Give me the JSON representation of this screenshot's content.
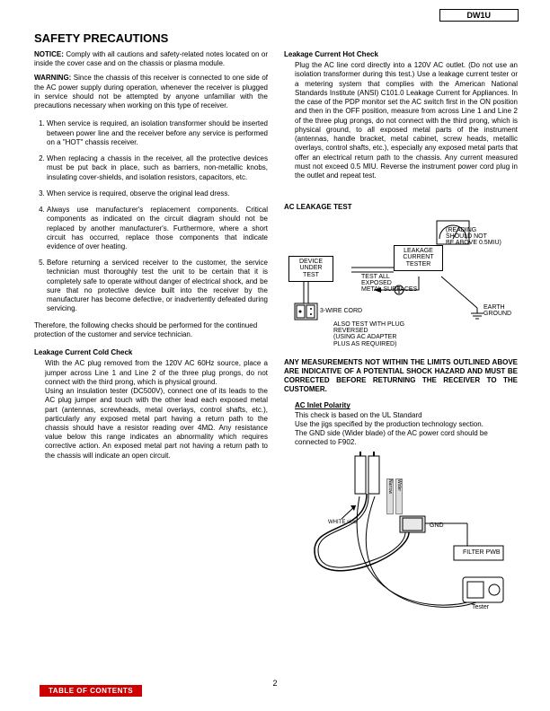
{
  "model": "DW1U",
  "title": "SAFETY PRECAUTIONS",
  "notice_label": "NOTICE:",
  "notice_text": "  Comply with all cautions and safety-related notes located on or inside the cover case and on the chassis or plasma module.",
  "warn_label": "WARNING:",
  "warn_text": " Since the chassis of this receiver is connected to one side of the AC power supply during operation, whenever the receiver is plugged in service should not be attempted by anyone unfamiliar with the precautions necessary when working on this type of receiver.",
  "items": [
    "When service is required, an isolation transformer should be inserted between power line and the receiver before any service is performed on a \"HOT\" chassis receiver.",
    "When replacing a chassis in the receiver, all the protective devices must be put back in place, such as barriers, non-metallic knobs, insulating cover-shields, and isolation resistors, capacitors, etc.",
    "When service is required, observe the original lead dress.",
    "Always use manufacturer's replacement components.  Critical components as indicated on the circuit diagram should not be replaced by another manufacturer's.  Furthermore, where a short circuit has occurred, replace those components that indicate evidence of over heating.",
    "Before returning a serviced receiver to the customer, the service technician must thoroughly test the unit to be certain that it is completely safe to operate without danger of electrical shock, and be sure that no protective device built into the receiver by the manufacturer has become defective, or inadvertently defeated during servicing."
  ],
  "therefore": "Therefore, the following checks should be performed for the continued protection of the customer and service technician.",
  "cold_head": "Leakage Current Cold Check",
  "cold_p1": "With the AC plug removed from the 120V AC 60Hz source, place a jumper across Line 1 and Line 2 of the three plug prongs, do not connect with the third prong, which is physical ground.",
  "cold_p2": "Using an insulation tester (DC500V), connect one of its leads to the AC plug jumper and touch with the other lead each exposed metal part (antennas, screwheads, metal overlays, control shafts, etc.), particularly any exposed metal part having a return path to the chassis should have a resistor reading over 4MΩ.  Any resistance value below this range indicates an abnormality which requires corrective action.  An exposed metal part not having a return path to the chassis will indicate an open circuit.",
  "hot_head": "Leakage Current Hot Check",
  "hot_body": "Plug the AC line cord directly into a 120V AC outlet.  (Do not use an isolation transformer during this test.)  Use a leakage current tester or a metering system that complies with the American National Standards Institute (ANSI) C101.0 Leakage Current for Appliances.  In the case of the PDP monitor set the AC switch first in the ON position and then in the OFF position, measure from across Line 1 and Line 2 of the three plug prongs, do not connect with the third prong, which is physical ground, to all exposed metal parts of the instrument (antennas, handle bracket, metal cabinet, screw heads, metallic overlays, control shafts, etc.), especially any exposed metal parts that offer an electrical return path to the chassis.  Any current measured must not exceed 0.5 MIU.  Reverse the instrument power cord plug in the outlet and repeat test.",
  "ac_test_head": "AC LEAKAGE TEST",
  "diag1": {
    "device": "DEVICE\nUNDER\nTEST",
    "tester": "LEAKAGE\nCURRENT\nTESTER",
    "reading": "(READING\nSHOULD NOT\nBE ABOVE 0.5MIU)",
    "testall": "TEST ALL\nEXPOSED\nMETAL SURFACES",
    "cord": "3-WIRE CORD",
    "earth": "EARTH\nGROUND",
    "also": "ALSO TEST WITH PLUG\nREVERSED\n(USING AC ADAPTER\nPLUS AS REQUIRED)"
  },
  "big_warn": "ANY MEASUREMENTS NOT WITHIN THE LIMITS OUTLINED ABOVE ARE INDICATIVE OF A POTENTIAL SHOCK HAZARD AND MUST BE CORRECTED BEFORE RETURNING THE RECEIVER TO THE CUSTOMER.",
  "inlet_head": "AC Inlet Polarity",
  "inlet_l1": "This check is based on the UL Standard",
  "inlet_l2": "Use the jigs specified by the production technology section.",
  "inlet_l3": "The GND side (Wider blade) of the AC power cord should be connected to F902.",
  "diag2": {
    "white": "WHITE side",
    "gnd": "GND",
    "filter": "FILTER PWB",
    "tester": "Tester"
  },
  "page": "2",
  "toc": "TABLE OF CONTENTS"
}
